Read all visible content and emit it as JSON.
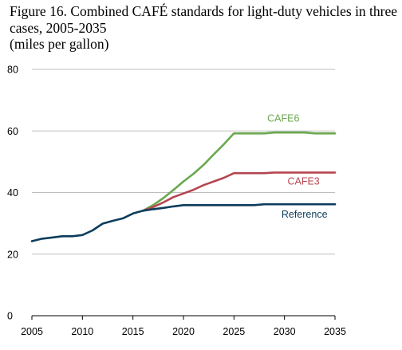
{
  "chart_data": {
    "type": "line",
    "title_lines": [
      "Figure 16. Combined CAFÉ standards for light-duty vehicles in three",
      "cases, 2005-2035",
      "(miles per gallon)"
    ],
    "xlim": [
      2005,
      2035
    ],
    "ylim": [
      0,
      80
    ],
    "x_ticks": [
      2005,
      2010,
      2015,
      2020,
      2025,
      2030,
      2035
    ],
    "y_ticks": [
      0,
      20,
      40,
      60,
      80
    ],
    "grid": "horizontal",
    "series": [
      {
        "name": "CAFE6",
        "color": "#6aa84f",
        "x": [
          2016,
          2017,
          2018,
          2019,
          2020,
          2021,
          2022,
          2023,
          2024,
          2025,
          2026,
          2027,
          2028,
          2029,
          2030,
          2031,
          2032,
          2033,
          2034,
          2035
        ],
        "values": [
          34.1,
          35.9,
          38.2,
          40.8,
          43.6,
          46.1,
          49.0,
          52.4,
          55.7,
          59.2,
          59.2,
          59.2,
          59.2,
          59.5,
          59.5,
          59.5,
          59.5,
          59.2,
          59.2,
          59.2
        ]
      },
      {
        "name": "CAFE3",
        "color": "#b5464f",
        "x": [
          2016,
          2017,
          2018,
          2019,
          2020,
          2021,
          2022,
          2023,
          2024,
          2025,
          2026,
          2027,
          2028,
          2029,
          2030,
          2031,
          2032,
          2033,
          2034,
          2035
        ],
        "values": [
          34.1,
          35.3,
          36.8,
          38.5,
          39.7,
          40.9,
          42.4,
          43.6,
          44.8,
          46.3,
          46.3,
          46.3,
          46.3,
          46.5,
          46.5,
          46.5,
          46.5,
          46.5,
          46.5,
          46.5
        ]
      },
      {
        "name": "Reference",
        "color": "#0d3d5c",
        "x": [
          2005,
          2006,
          2007,
          2008,
          2009,
          2010,
          2011,
          2012,
          2013,
          2014,
          2015,
          2016,
          2017,
          2018,
          2019,
          2020,
          2021,
          2022,
          2023,
          2024,
          2025,
          2026,
          2027,
          2028,
          2029,
          2030,
          2031,
          2032,
          2033,
          2034,
          2035
        ],
        "values": [
          24.2,
          25.0,
          25.4,
          25.8,
          25.8,
          26.2,
          27.7,
          29.9,
          30.8,
          31.6,
          33.2,
          34.1,
          34.6,
          35.0,
          35.5,
          35.9,
          35.9,
          35.9,
          35.9,
          35.9,
          35.9,
          35.9,
          35.9,
          36.2,
          36.2,
          36.2,
          36.2,
          36.2,
          36.2,
          36.2,
          36.2
        ]
      }
    ],
    "annotations": [
      {
        "series": "CAFE6",
        "text": "CAFE6",
        "at_x": 2028.3,
        "at_y": 63.0
      },
      {
        "series": "CAFE3",
        "text": "CAFE3",
        "at_x": 2030.3,
        "at_y": 42.6
      },
      {
        "series": "Reference",
        "text": "Reference",
        "at_x": 2029.7,
        "at_y": 31.8
      }
    ]
  }
}
